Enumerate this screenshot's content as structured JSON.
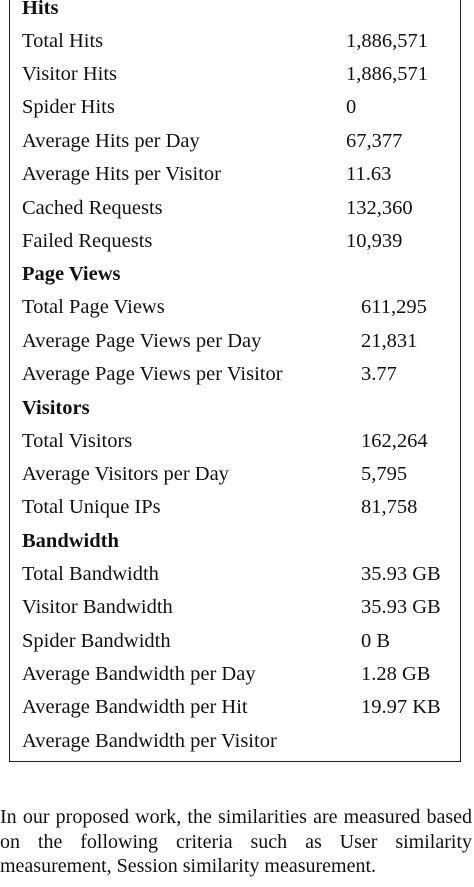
{
  "sections": [
    {
      "heading": "Hits",
      "rows": [
        {
          "label": "Total Hits",
          "value": "1,886,571"
        },
        {
          "label": "Visitor Hits",
          "value": "1,886,571"
        },
        {
          "label": "Spider Hits",
          "value": "0"
        },
        {
          "label": "Average Hits per Day",
          "value": "67,377"
        },
        {
          "label": "Average Hits per Visitor",
          "value": "11.63"
        },
        {
          "label": "Cached Requests",
          "value": "132,360"
        },
        {
          "label": "Failed Requests",
          "value": "10,939"
        }
      ]
    },
    {
      "heading": "Page Views",
      "rows": [
        {
          "label": "Total Page Views",
          "value": "611,295"
        },
        {
          "label": "Average Page Views per Day",
          "value": "21,831"
        },
        {
          "label": "Average Page Views per Visitor",
          "value": "3.77"
        }
      ]
    },
    {
      "heading": "Visitors",
      "rows": [
        {
          "label": "Total Visitors",
          "value": "162,264"
        },
        {
          "label": "Average Visitors per Day",
          "value": "5,795"
        },
        {
          "label": "Total Unique IPs",
          "value": "81,758"
        }
      ]
    },
    {
      "heading": "Bandwidth",
      "rows": [
        {
          "label": "Total Bandwidth",
          "value": "35.93 GB"
        },
        {
          "label": "Visitor Bandwidth",
          "value": "35.93 GB"
        },
        {
          "label": "Spider Bandwidth",
          "value": "0 B"
        },
        {
          "label": "Average Bandwidth per Day",
          "value": "1.28 GB"
        },
        {
          "label": "Average Bandwidth per Hit",
          "value": "19.97 KB"
        },
        {
          "label": "Average Bandwidth per Visitor",
          "value": ""
        }
      ]
    }
  ],
  "paragraph": "In our proposed work, the similarities are measured based on the following criteria such as User similarity measurement, Session similarity measurement."
}
